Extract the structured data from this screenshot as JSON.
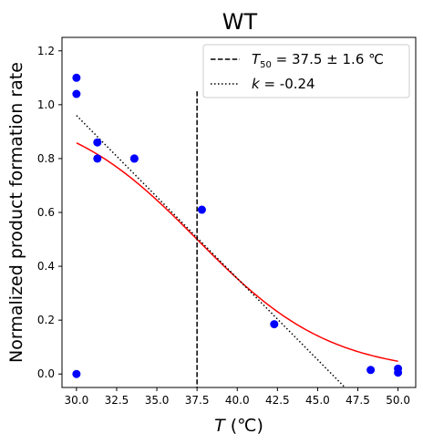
{
  "chart_data": {
    "type": "scatter",
    "title": "WT",
    "xlabel_symbol": "T",
    "xlabel_unit": "(℃)",
    "ylabel": "Normalized product formation rate",
    "xlim": [
      29.1,
      51.1
    ],
    "ylim": [
      -0.05,
      1.25
    ],
    "x_ticks": [
      30.0,
      32.5,
      35.0,
      37.5,
      40.0,
      42.5,
      45.0,
      47.5,
      50.0
    ],
    "x_tick_labels": [
      "30.0",
      "32.5",
      "35.0",
      "37.5",
      "40.0",
      "42.5",
      "45.0",
      "47.5",
      "50.0"
    ],
    "y_ticks": [
      0.0,
      0.2,
      0.4,
      0.6,
      0.8,
      1.0,
      1.2
    ],
    "y_tick_labels": [
      "0.0",
      "0.2",
      "0.4",
      "0.6",
      "0.8",
      "1.0",
      "1.2"
    ],
    "grid": false,
    "legend_position": "top-right",
    "points": {
      "color": "#0000ff",
      "x": [
        30.0,
        30.0,
        30.0,
        31.3,
        31.3,
        33.6,
        33.6,
        37.8,
        42.3,
        48.3,
        50.0,
        50.0
      ],
      "y": [
        1.1,
        1.04,
        0.0,
        0.86,
        0.8,
        0.8,
        0.8,
        0.61,
        0.185,
        0.015,
        0.02,
        0.005
      ]
    },
    "fit_curve": {
      "color": "#ff0000",
      "x_range": [
        30.0,
        50.0
      ],
      "t50": 37.5,
      "k": 0.24
    },
    "t50_line": {
      "x": 37.5,
      "y_range": [
        -0.05,
        1.05
      ],
      "style": "dashed",
      "legend_symbol": "T",
      "legend_subscript": "50",
      "legend_value": " = 37.5 ± 1.6 ℃"
    },
    "slope_line": {
      "style": "dotted",
      "x_range": [
        30.0,
        46.7
      ],
      "y_at_x_start": 0.96,
      "y_at_x_end": -0.05,
      "legend_symbol": "k",
      "legend_value": " = -0.24"
    }
  }
}
